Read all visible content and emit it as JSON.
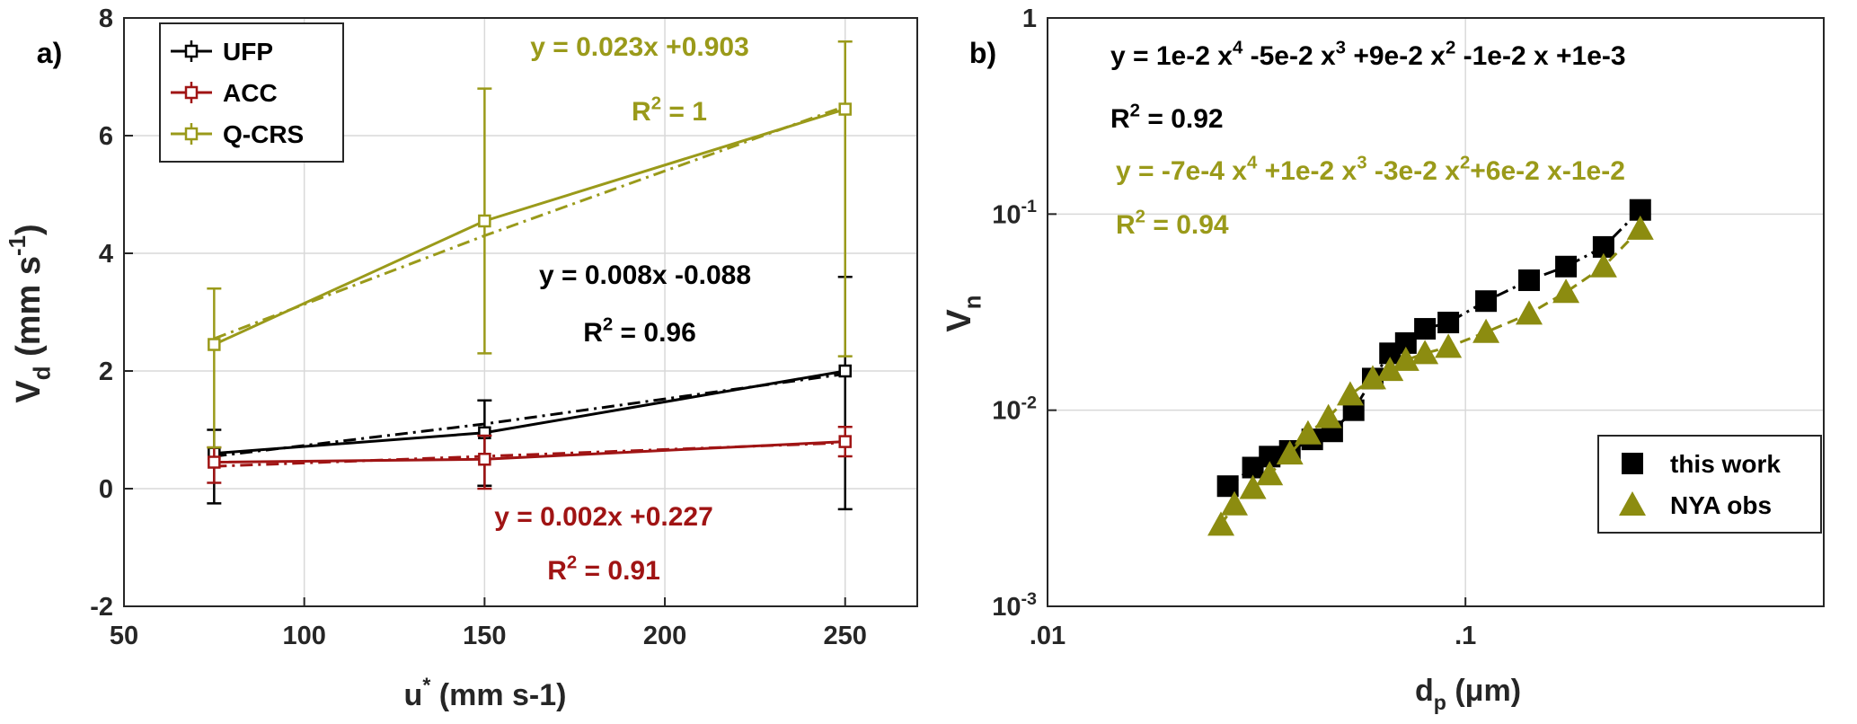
{
  "chart_data": [
    {
      "type": "errorbar_line",
      "panel_label": "a)",
      "xlabel": [
        "u",
        {
          "sup": "*"
        },
        " (mm s-1)"
      ],
      "ylabel": [
        "V",
        {
          "sub": "d"
        },
        " (mm s",
        {
          "sup": "-1"
        },
        ")"
      ],
      "xlim": [
        50,
        270
      ],
      "xticks": [
        50,
        100,
        150,
        200,
        250
      ],
      "ylim": [
        -2,
        8
      ],
      "yticks": [
        -2,
        0,
        2,
        4,
        6,
        8
      ],
      "grid": true,
      "legend": "upper left",
      "x": [
        75,
        150,
        250
      ],
      "series": [
        {
          "name": "UFP",
          "color": "#000000",
          "values": [
            0.6,
            0.95,
            2.0
          ],
          "err_minus": [
            0.85,
            0.9,
            2.35
          ],
          "err_plus": [
            0.4,
            0.55,
            1.6
          ],
          "fit_values": [
            0.55,
            1.1,
            1.95
          ]
        },
        {
          "name": "ACC",
          "color": "#a01414",
          "values": [
            0.45,
            0.5,
            0.8
          ],
          "err_minus": [
            0.35,
            0.5,
            0.25
          ],
          "err_plus": [
            0.25,
            0.4,
            0.25
          ],
          "fit_values": [
            0.38,
            0.55,
            0.78
          ]
        },
        {
          "name": "Q-CRS",
          "color": "#9a9a1a",
          "values": [
            2.45,
            4.55,
            6.45
          ],
          "err_minus": [
            1.75,
            2.25,
            4.2
          ],
          "err_plus": [
            0.95,
            2.25,
            1.15
          ],
          "fit_values": [
            2.55,
            4.3,
            6.5
          ]
        }
      ],
      "annotations": [
        {
          "text": "y = 0.023x +0.903",
          "color": "#9a9a1a"
        },
        {
          "text": [
            "R",
            {
              "sup": "2"
            },
            " = 1"
          ],
          "color": "#9a9a1a"
        },
        {
          "text": "y = 0.008x -0.088",
          "color": "#000000"
        },
        {
          "text": [
            "R",
            {
              "sup": "2"
            },
            " = 0.96"
          ],
          "color": "#000000"
        },
        {
          "text": "y = 0.002x +0.227",
          "color": "#a01414"
        },
        {
          "text": [
            "R",
            {
              "sup": "2"
            },
            " = 0.91"
          ],
          "color": "#a01414"
        }
      ]
    },
    {
      "type": "scatter_line",
      "panel_label": "b)",
      "xlabel": [
        "d",
        {
          "sub": "p"
        },
        " (μm)"
      ],
      "ylabel": [
        "V",
        {
          "sub": "n"
        }
      ],
      "log_x": true,
      "log_y": true,
      "xlim": [
        0.01,
        0.72
      ],
      "xticks": [
        {
          "value": 0.01,
          "label": ".01"
        },
        {
          "value": 0.1,
          "label": ".1"
        }
      ],
      "ylim": [
        0.001,
        1
      ],
      "yticks": [
        {
          "value": 0.001,
          "label": [
            "10",
            {
              "sup": "-3"
            }
          ]
        },
        {
          "value": 0.01,
          "label": [
            "10",
            {
              "sup": "-2"
            }
          ]
        },
        {
          "value": 0.1,
          "label": [
            "10",
            {
              "sup": "-1"
            }
          ]
        },
        1
      ],
      "grid": true,
      "legend": "lower right",
      "series": [
        {
          "name": "this work",
          "color": "#000000",
          "marker": "square",
          "line_style": "dash-dot",
          "x": [
            0.027,
            0.031,
            0.034,
            0.038,
            0.043,
            0.048,
            0.054,
            0.06,
            0.066,
            0.072,
            0.08,
            0.091,
            0.112,
            0.142,
            0.174,
            0.214,
            0.262
          ],
          "values": [
            0.0041,
            0.0051,
            0.0058,
            0.0062,
            0.0071,
            0.0078,
            0.01,
            0.0145,
            0.0195,
            0.022,
            0.026,
            0.028,
            0.036,
            0.046,
            0.054,
            0.068,
            0.105
          ]
        },
        {
          "name": "NYA obs",
          "color": "#8c8c10",
          "marker": "triangle",
          "line_style": "dashed",
          "x": [
            0.026,
            0.028,
            0.031,
            0.034,
            0.038,
            0.042,
            0.047,
            0.053,
            0.06,
            0.066,
            0.072,
            0.08,
            0.091,
            0.112,
            0.142,
            0.174,
            0.214,
            0.262
          ],
          "values": [
            0.0026,
            0.0033,
            0.004,
            0.0047,
            0.006,
            0.0076,
            0.0092,
            0.012,
            0.0145,
            0.016,
            0.018,
            0.0195,
            0.021,
            0.025,
            0.031,
            0.04,
            0.054,
            0.084
          ]
        }
      ],
      "annotations": [
        {
          "text": [
            "y = 1e-2 x",
            {
              "sup": "4"
            },
            " -5e-2 x",
            {
              "sup": "3"
            },
            " +9e-2 x",
            {
              "sup": "2"
            },
            " -1e-2 x +1e-3"
          ],
          "color": "#000000"
        },
        {
          "text": [
            "R",
            {
              "sup": "2"
            },
            " = 0.92"
          ],
          "color": "#000000"
        },
        {
          "text": [
            "y = -7e-4 x",
            {
              "sup": "4"
            },
            " +1e-2 x",
            {
              "sup": "3"
            },
            " -3e-2 x",
            {
              "sup": "2"
            },
            "+6e-2 x-1e-2"
          ],
          "color": "#9a9a1a"
        },
        {
          "text": [
            "R",
            {
              "sup": "2"
            },
            " = 0.94"
          ],
          "color": "#9a9a1a"
        }
      ]
    }
  ]
}
